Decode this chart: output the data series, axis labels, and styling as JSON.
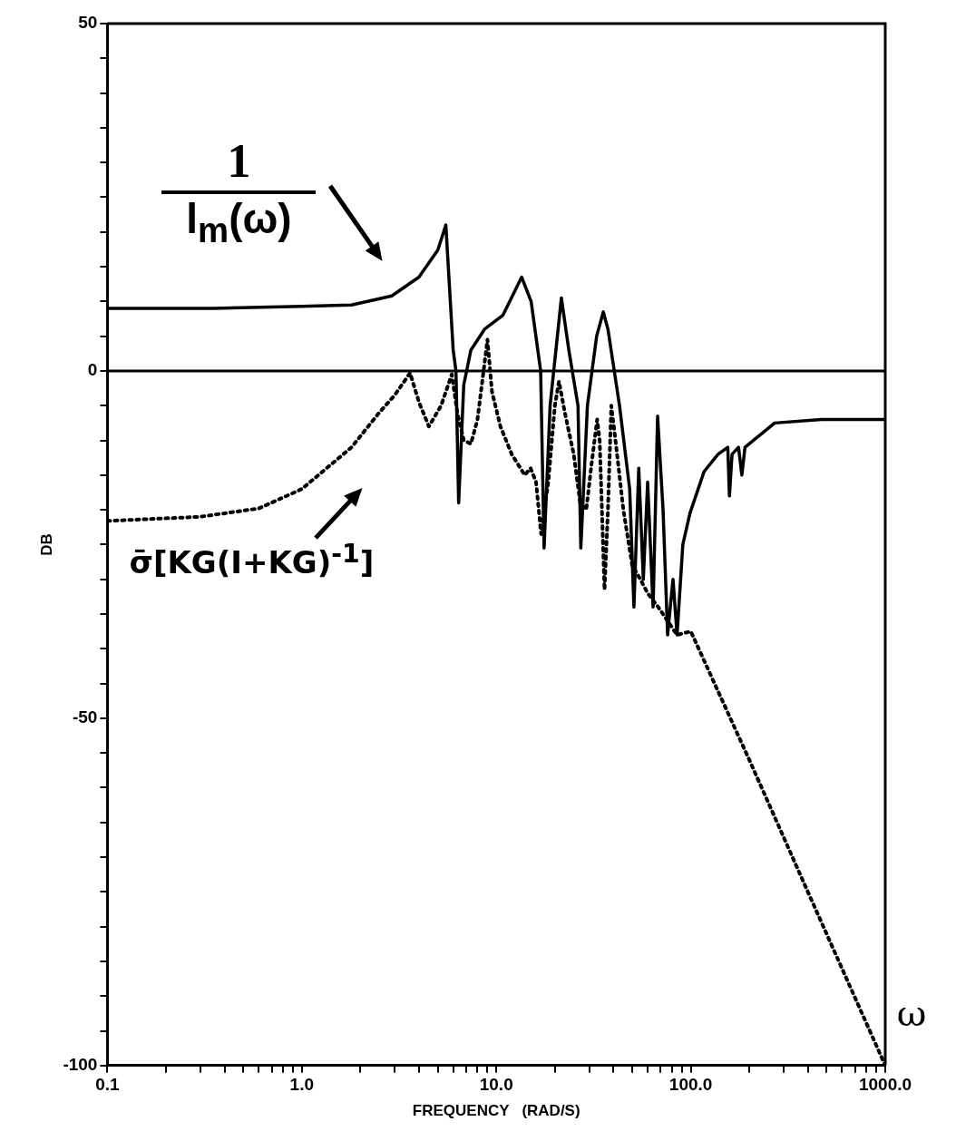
{
  "chart_data": {
    "type": "line",
    "xlabel": "FREQUENCY   (RAD/S)",
    "ylabel": "DB",
    "log": "x",
    "grid": false,
    "legend": false,
    "marker": "none",
    "xlim": [
      0.1,
      1000
    ],
    "ylim": [
      -100,
      50
    ],
    "xticks": [
      {
        "value": 0.1,
        "label": "0.1"
      },
      {
        "value": 0.2,
        "label": null
      },
      {
        "value": 0.3,
        "label": null
      },
      {
        "value": 0.4,
        "label": null
      },
      {
        "value": 0.5,
        "label": null
      },
      {
        "value": 0.6,
        "label": null
      },
      {
        "value": 0.7,
        "label": null
      },
      {
        "value": 0.8,
        "label": null
      },
      {
        "value": 0.9,
        "label": null
      },
      {
        "value": 1,
        "label": "1.0"
      },
      {
        "value": 2,
        "label": null
      },
      {
        "value": 3,
        "label": null
      },
      {
        "value": 4,
        "label": null
      },
      {
        "value": 5,
        "label": null
      },
      {
        "value": 6,
        "label": null
      },
      {
        "value": 7,
        "label": null
      },
      {
        "value": 8,
        "label": null
      },
      {
        "value": 9,
        "label": null
      },
      {
        "value": 10,
        "label": "10.0"
      },
      {
        "value": 20,
        "label": null
      },
      {
        "value": 30,
        "label": null
      },
      {
        "value": 40,
        "label": null
      },
      {
        "value": 50,
        "label": null
      },
      {
        "value": 60,
        "label": null
      },
      {
        "value": 70,
        "label": null
      },
      {
        "value": 80,
        "label": null
      },
      {
        "value": 90,
        "label": null
      },
      {
        "value": 100,
        "label": "100.0"
      },
      {
        "value": 200,
        "label": null
      },
      {
        "value": 300,
        "label": null
      },
      {
        "value": 400,
        "label": null
      },
      {
        "value": 500,
        "label": null
      },
      {
        "value": 600,
        "label": null
      },
      {
        "value": 700,
        "label": null
      },
      {
        "value": 800,
        "label": null
      },
      {
        "value": 900,
        "label": null
      },
      {
        "value": 1000,
        "label": "1000.0"
      }
    ],
    "yticks": [
      -100,
      {
        "value": -95,
        "label": null
      },
      {
        "value": -90,
        "label": null
      },
      {
        "value": -85,
        "label": null
      },
      {
        "value": -80,
        "label": null
      },
      {
        "value": -75,
        "label": null
      },
      {
        "value": -70,
        "label": null
      },
      {
        "value": -65,
        "label": null
      },
      {
        "value": -60,
        "label": null
      },
      {
        "value": -55,
        "label": null
      },
      -50,
      {
        "value": -45,
        "label": null
      },
      {
        "value": -40,
        "label": null
      },
      {
        "value": -35,
        "label": null
      },
      {
        "value": -30,
        "label": null
      },
      {
        "value": -25,
        "label": null
      },
      {
        "value": -20,
        "label": null
      },
      {
        "value": -15,
        "label": null
      },
      {
        "value": -10,
        "label": null
      },
      {
        "value": -5,
        "label": null
      },
      0,
      {
        "value": 5,
        "label": null
      },
      {
        "value": 10,
        "label": null
      },
      {
        "value": 15,
        "label": null
      },
      {
        "value": 20,
        "label": null
      },
      {
        "value": 25,
        "label": null
      },
      {
        "value": 30,
        "label": null
      },
      {
        "value": 35,
        "label": null
      },
      {
        "value": 40,
        "label": null
      },
      {
        "value": 45,
        "label": null
      },
      50
    ],
    "ref_lines": [
      {
        "axis": "y",
        "value": 0,
        "color": "#000000",
        "line_style": "solid"
      }
    ],
    "series": [
      {
        "color": "#000000",
        "line_style": "solid",
        "x": [
          0.1,
          0.35,
          1.0,
          1.8,
          2.9,
          4.0,
          5.0,
          5.5,
          6.0,
          6.2,
          6.4,
          6.8,
          7.4,
          8.7,
          10.8,
          13.5,
          15.1,
          16.9,
          17.6,
          18.9,
          21.6,
          23.6,
          26.3,
          27.2,
          29.4,
          32.8,
          35.5,
          37.5,
          43,
          48.5,
          51,
          54,
          57,
          60,
          64,
          67.5,
          72,
          76,
          81,
          85,
          91,
          99,
          117,
          138,
          155,
          158,
          163,
          176,
          183,
          190,
          270,
          470,
          1000
        ],
        "values": [
          9,
          9,
          9.3,
          9.5,
          10.8,
          13.5,
          17.4,
          21,
          3,
          0,
          -19,
          -2,
          3,
          6,
          8,
          13.5,
          10,
          0,
          -25.5,
          -5,
          10.5,
          3,
          -5,
          -25.5,
          -5,
          5,
          8.5,
          6,
          -5,
          -17,
          -34,
          -14,
          -30,
          -16,
          -34,
          -6.5,
          -20,
          -38,
          -30,
          -38,
          -25,
          -20.5,
          -14.5,
          -12,
          -11,
          -18,
          -12,
          -11,
          -15,
          -11,
          -7.5,
          -7,
          -7
        ]
      },
      {
        "color": "#000000",
        "line_style": "dotted",
        "x": [
          0.1,
          0.3,
          0.6,
          1.0,
          1.8,
          2.5,
          3.0,
          3.6,
          4.0,
          4.5,
          5.2,
          5.9,
          6.3,
          6.8,
          7.4,
          8.0,
          8.6,
          9.0,
          9.5,
          10.5,
          12,
          14,
          15,
          16,
          17,
          18.5,
          20,
          21,
          22.5,
          25,
          27,
          29,
          31,
          33,
          34,
          36,
          37.5,
          39,
          41,
          45,
          50,
          55,
          60,
          68,
          76,
          85,
          100,
          200,
          400,
          1000
        ],
        "values": [
          -21.6,
          -21,
          -19.8,
          -17,
          -11,
          -6,
          -3.5,
          -0.3,
          -4.5,
          -8,
          -5,
          -0.5,
          -6,
          -10,
          -10.5,
          -7,
          0,
          4.5,
          -3,
          -8,
          -12,
          -15,
          -14,
          -16,
          -23.5,
          -16,
          -5,
          -1.5,
          -6,
          -12,
          -19,
          -20,
          -13,
          -7,
          -10,
          -31.5,
          -20,
          -5,
          -10,
          -20,
          -28,
          -30,
          -32,
          -34,
          -36,
          -38,
          -37.5,
          -56,
          -75,
          -100
        ]
      }
    ],
    "annotations": [
      "1",
      "l$_{m}$(ω)",
      "σ̄[KG(I+KG)$^{-1}$]",
      "ω"
    ]
  }
}
